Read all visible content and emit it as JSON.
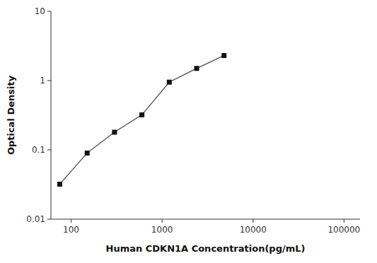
{
  "chart_data": {
    "type": "line",
    "x": [
      75,
      150,
      300,
      600,
      1200,
      2400,
      4800
    ],
    "values": [
      0.032,
      0.09,
      0.18,
      0.32,
      0.95,
      1.5,
      2.3
    ],
    "xlabel": "Human CDKN1A Concentration(pg/mL)",
    "ylabel": "Optical Density",
    "xlim": [
      60,
      150000
    ],
    "ylim": [
      0.01,
      10
    ],
    "xticks": [
      100,
      1000,
      10000,
      100000
    ],
    "yticks": [
      0.01,
      0.1,
      1,
      10
    ],
    "log": true,
    "color": "#666666",
    "marker": "square"
  }
}
